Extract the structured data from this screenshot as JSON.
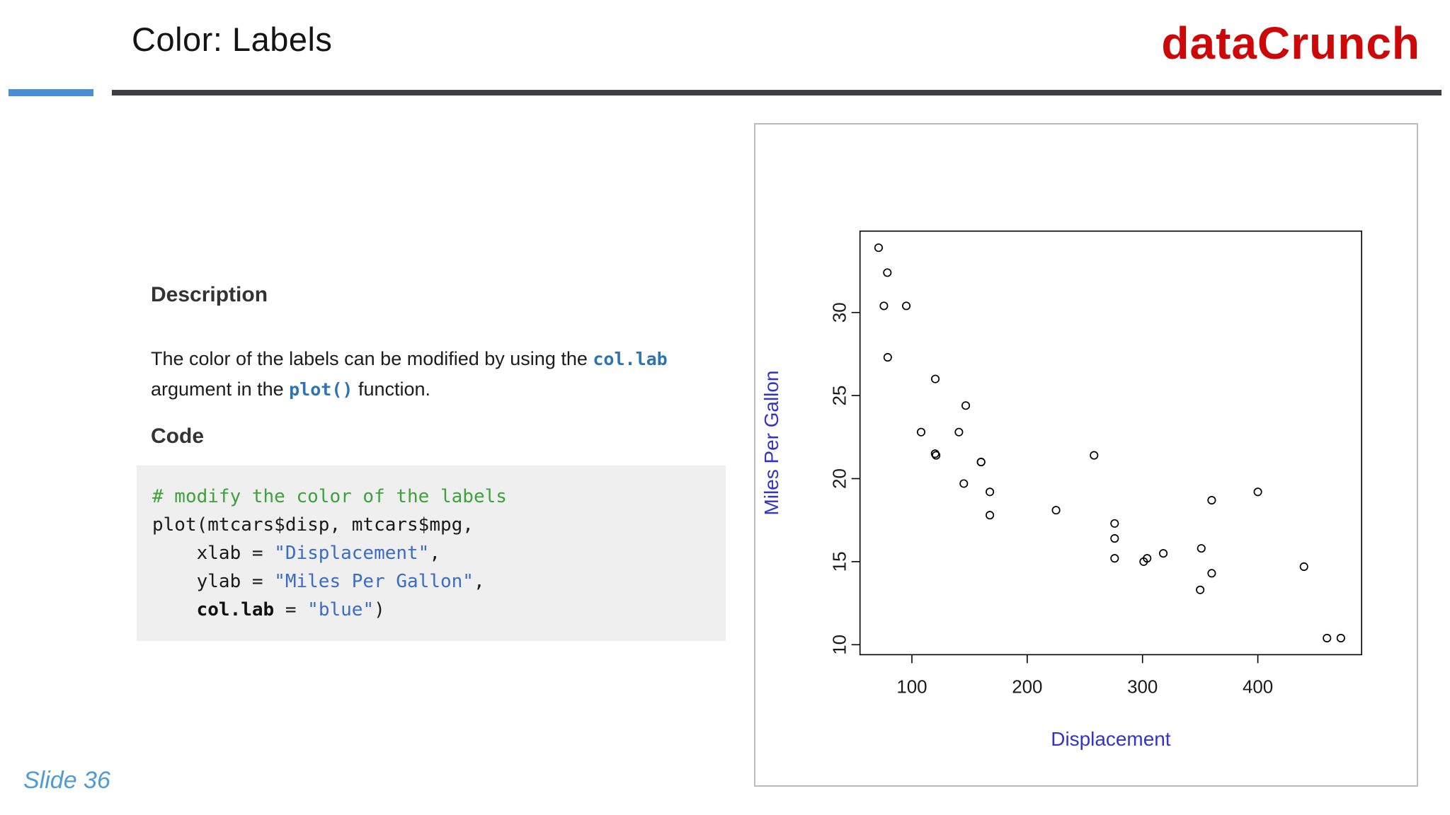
{
  "header": {
    "title": "Color: Labels",
    "brand": "dataCrunch",
    "brand_color": "#cc0808",
    "accent_color": "#4a8fd3"
  },
  "description": {
    "heading": "Description",
    "p1": "The color of the labels can be modified by using the ",
    "code1": "col.lab",
    "p2": " argument in the ",
    "code2": "plot()",
    "p3": " function."
  },
  "code": {
    "heading": "Code",
    "lines": [
      [
        {
          "t": "# modify the color of the labels",
          "c": "comment"
        }
      ],
      [
        {
          "t": "plot(mtcars$disp, mtcars$mpg,",
          "c": "plain"
        }
      ],
      [
        {
          "t": "    xlab = ",
          "c": "plain"
        },
        {
          "t": "\"Displacement\"",
          "c": "string"
        },
        {
          "t": ",",
          "c": "plain"
        }
      ],
      [
        {
          "t": "    ylab = ",
          "c": "plain"
        },
        {
          "t": "\"Miles Per Gallon\"",
          "c": "string"
        },
        {
          "t": ",",
          "c": "plain"
        }
      ],
      [
        {
          "t": "    ",
          "c": "plain"
        },
        {
          "t": "col.lab",
          "c": "bold"
        },
        {
          "t": " = ",
          "c": "plain"
        },
        {
          "t": "\"blue\"",
          "c": "string"
        },
        {
          "t": ")",
          "c": "plain"
        }
      ]
    ]
  },
  "footer": {
    "slide_number": "Slide 36"
  },
  "chart_data": {
    "type": "scatter",
    "title": "",
    "xlabel": "Displacement",
    "ylabel": "Miles Per Gallon",
    "xlim": [
      55,
      490
    ],
    "ylim": [
      9.4,
      34.9
    ],
    "x_ticks": [
      100,
      200,
      300,
      400
    ],
    "y_ticks": [
      10,
      15,
      20,
      25,
      30
    ],
    "axis_label_color": "#3333cc",
    "tick_label_color": "#1a1a1a",
    "point_style": "open-circle",
    "grid": false,
    "points": [
      [
        160,
        21
      ],
      [
        160,
        21
      ],
      [
        108,
        22.8
      ],
      [
        258,
        21.4
      ],
      [
        360,
        18.7
      ],
      [
        225,
        18.1
      ],
      [
        360,
        14.3
      ],
      [
        146.7,
        24.4
      ],
      [
        140.8,
        22.8
      ],
      [
        167.6,
        19.2
      ],
      [
        167.6,
        17.8
      ],
      [
        275.8,
        16.4
      ],
      [
        275.8,
        17.3
      ],
      [
        275.8,
        15.2
      ],
      [
        472,
        10.4
      ],
      [
        460,
        10.4
      ],
      [
        440,
        14.7
      ],
      [
        78.7,
        32.4
      ],
      [
        75.7,
        30.4
      ],
      [
        71.1,
        33.9
      ],
      [
        120.1,
        21.5
      ],
      [
        318,
        15.5
      ],
      [
        304,
        15.2
      ],
      [
        350,
        13.3
      ],
      [
        400,
        19.2
      ],
      [
        79,
        27.3
      ],
      [
        120.3,
        26
      ],
      [
        95.1,
        30.4
      ],
      [
        351,
        15.8
      ],
      [
        145,
        19.7
      ],
      [
        301,
        15
      ],
      [
        121,
        21.4
      ]
    ]
  }
}
